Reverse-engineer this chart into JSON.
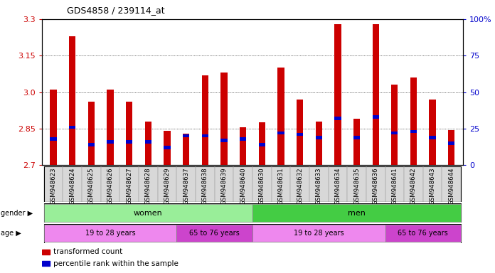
{
  "title": "GDS4858 / 239114_at",
  "samples": [
    "GSM948623",
    "GSM948624",
    "GSM948625",
    "GSM948626",
    "GSM948627",
    "GSM948628",
    "GSM948629",
    "GSM948637",
    "GSM948638",
    "GSM948639",
    "GSM948640",
    "GSM948630",
    "GSM948631",
    "GSM948632",
    "GSM948633",
    "GSM948634",
    "GSM948635",
    "GSM948636",
    "GSM948641",
    "GSM948642",
    "GSM948643",
    "GSM948644"
  ],
  "transformed_count": [
    3.01,
    3.23,
    2.96,
    3.01,
    2.96,
    2.88,
    2.84,
    2.83,
    3.07,
    3.08,
    2.855,
    2.875,
    3.1,
    2.97,
    2.88,
    3.28,
    2.89,
    3.28,
    3.03,
    3.06,
    2.97,
    2.845
  ],
  "percentile_rank": [
    18,
    26,
    14,
    16,
    16,
    16,
    12,
    20,
    20,
    17,
    18,
    14,
    22,
    21,
    19,
    32,
    19,
    33,
    22,
    23,
    19,
    15
  ],
  "y_min": 2.7,
  "y_max": 3.3,
  "y_ticks": [
    2.7,
    2.85,
    3.0,
    3.15,
    3.3
  ],
  "right_y_ticks": [
    0,
    25,
    50,
    75,
    100
  ],
  "right_y_labels": [
    "0",
    "25",
    "50",
    "75",
    "100%"
  ],
  "bar_color": "#cc0000",
  "blue_color": "#0000cc",
  "gender_colors": {
    "women": "#99ee99",
    "men": "#44cc44"
  },
  "age_colors_young": "#ee88ee",
  "age_colors_old": "#cc44cc",
  "gender_groups": [
    {
      "label": "women",
      "start": 0,
      "end": 10
    },
    {
      "label": "men",
      "start": 11,
      "end": 21
    }
  ],
  "age_groups": [
    {
      "label": "19 to 28 years",
      "start": 0,
      "end": 6,
      "color": "#ee88ee"
    },
    {
      "label": "65 to 76 years",
      "start": 7,
      "end": 10,
      "color": "#cc44cc"
    },
    {
      "label": "19 to 28 years",
      "start": 11,
      "end": 17,
      "color": "#ee88ee"
    },
    {
      "label": "65 to 76 years",
      "start": 18,
      "end": 21,
      "color": "#cc44cc"
    }
  ],
  "legend_items": [
    {
      "label": "transformed count",
      "color": "#cc0000"
    },
    {
      "label": "percentile rank within the sample",
      "color": "#0000cc"
    }
  ],
  "background_color": "#ffffff",
  "tick_label_color": "#cc0000",
  "right_tick_color": "#0000cc",
  "bar_width": 0.35
}
